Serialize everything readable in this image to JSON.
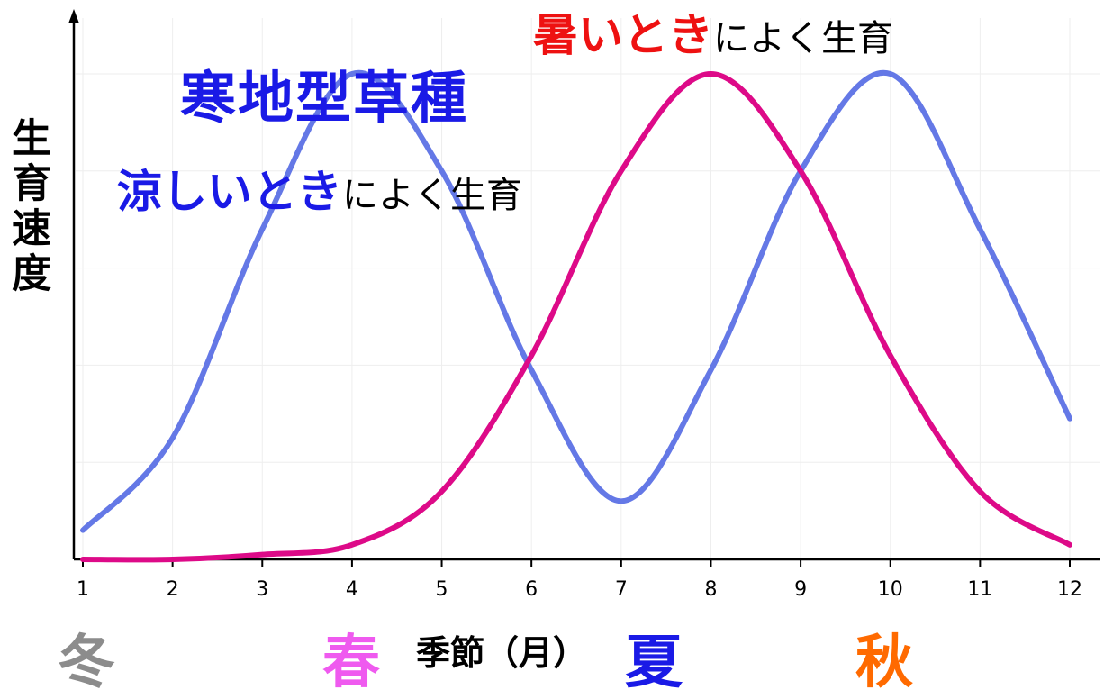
{
  "chart_data": {
    "type": "line",
    "title": "",
    "xlabel": "季節（月）",
    "ylabel": "生育速度",
    "x": [
      1,
      2,
      3,
      4,
      5,
      6,
      7,
      8,
      9,
      10,
      11,
      12
    ],
    "xlim": [
      1,
      12
    ],
    "ylim": [
      0,
      1
    ],
    "grid": true,
    "series": [
      {
        "name": "寒地型草種",
        "color": "#6478e6",
        "values": [
          0.06,
          0.25,
          0.68,
          1.0,
          0.8,
          0.39,
          0.12,
          0.39,
          0.8,
          1.0,
          0.68,
          0.29
        ]
      },
      {
        "name": "",
        "color": "#dd0a88",
        "values": [
          0.0,
          0.0,
          0.01,
          0.03,
          0.14,
          0.42,
          0.8,
          1.0,
          0.8,
          0.42,
          0.14,
          0.03
        ]
      }
    ],
    "annotations": {
      "cool_title": "寒地型草種",
      "cool_highlight": "涼しいとき",
      "cool_rest": "によく生育",
      "warm_highlight": "暑いとき",
      "warm_rest": "によく生育"
    },
    "seasons": [
      {
        "label": "冬",
        "color": "#8c8c8c"
      },
      {
        "label": "春",
        "color": "#ef5aef"
      },
      {
        "label": "夏",
        "color": "#1a1ae6"
      },
      {
        "label": "秋",
        "color": "#ff6a00"
      }
    ]
  }
}
